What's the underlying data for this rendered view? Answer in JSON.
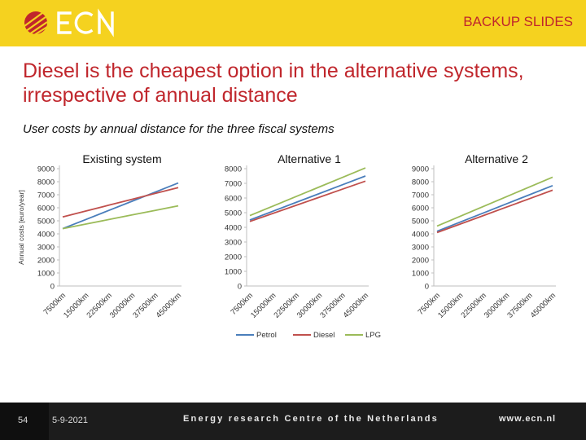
{
  "header": {
    "logo_text": "ECN",
    "tag": "BACKUP SLIDES"
  },
  "slide": {
    "title": "Diesel is the cheapest option in the alternative systems, irrespective of annual distance",
    "subtitle": "User costs by annual distance for the three fiscal systems"
  },
  "footer": {
    "page": "54",
    "date": "5-9-2021",
    "org": "Energy research Centre of the Netherlands",
    "url": "www.ecn.nl"
  },
  "colors": {
    "petrol": "#4a7ebb",
    "diesel": "#c0504d",
    "lpg": "#9bbb59",
    "accent": "#c0262c",
    "bar": "#f5d21f"
  },
  "legend": [
    "Petrol",
    "Diesel",
    "LPG"
  ],
  "chart_data": [
    {
      "type": "line",
      "title": "Existing system",
      "ylabel": "Annual costs [euro/year]",
      "categories": [
        "7500km",
        "15000km",
        "22500km",
        "30000km",
        "37500km",
        "45000km"
      ],
      "ylim": [
        0,
        9000
      ],
      "yticks": [
        0,
        1000,
        2000,
        3000,
        4000,
        5000,
        6000,
        7000,
        8000,
        9000
      ],
      "series": [
        {
          "name": "Petrol",
          "values": [
            4400,
            5100,
            5800,
            6500,
            7200,
            7900
          ]
        },
        {
          "name": "Diesel",
          "values": [
            5300,
            5750,
            6200,
            6650,
            7100,
            7550
          ]
        },
        {
          "name": "LPG",
          "values": [
            4400,
            4750,
            5100,
            5450,
            5800,
            6150
          ]
        }
      ]
    },
    {
      "type": "line",
      "title": "Alternative 1",
      "categories": [
        "7500km",
        "15000km",
        "22500km",
        "30000km",
        "37500km",
        "45000km"
      ],
      "ylim": [
        0,
        8000
      ],
      "yticks": [
        0,
        1000,
        2000,
        3000,
        4000,
        5000,
        6000,
        7000,
        8000
      ],
      "series": [
        {
          "name": "Petrol",
          "values": [
            4500,
            5100,
            5700,
            6300,
            6900,
            7500
          ]
        },
        {
          "name": "Diesel",
          "values": [
            4400,
            4950,
            5500,
            6050,
            6600,
            7150
          ]
        },
        {
          "name": "LPG",
          "values": [
            4800,
            5450,
            6100,
            6750,
            7400,
            8050
          ]
        }
      ]
    },
    {
      "type": "line",
      "title": "Alternative 2",
      "categories": [
        "7500km",
        "15000km",
        "22500km",
        "30000km",
        "37500km",
        "45000km"
      ],
      "ylim": [
        0,
        9000
      ],
      "yticks": [
        0,
        1000,
        2000,
        3000,
        4000,
        5000,
        6000,
        7000,
        8000,
        9000
      ],
      "series": [
        {
          "name": "Petrol",
          "values": [
            4200,
            4900,
            5600,
            6300,
            7000,
            7700
          ]
        },
        {
          "name": "Diesel",
          "values": [
            4100,
            4750,
            5400,
            6050,
            6700,
            7350
          ]
        },
        {
          "name": "LPG",
          "values": [
            4600,
            5350,
            6100,
            6850,
            7600,
            8350
          ]
        }
      ]
    }
  ]
}
